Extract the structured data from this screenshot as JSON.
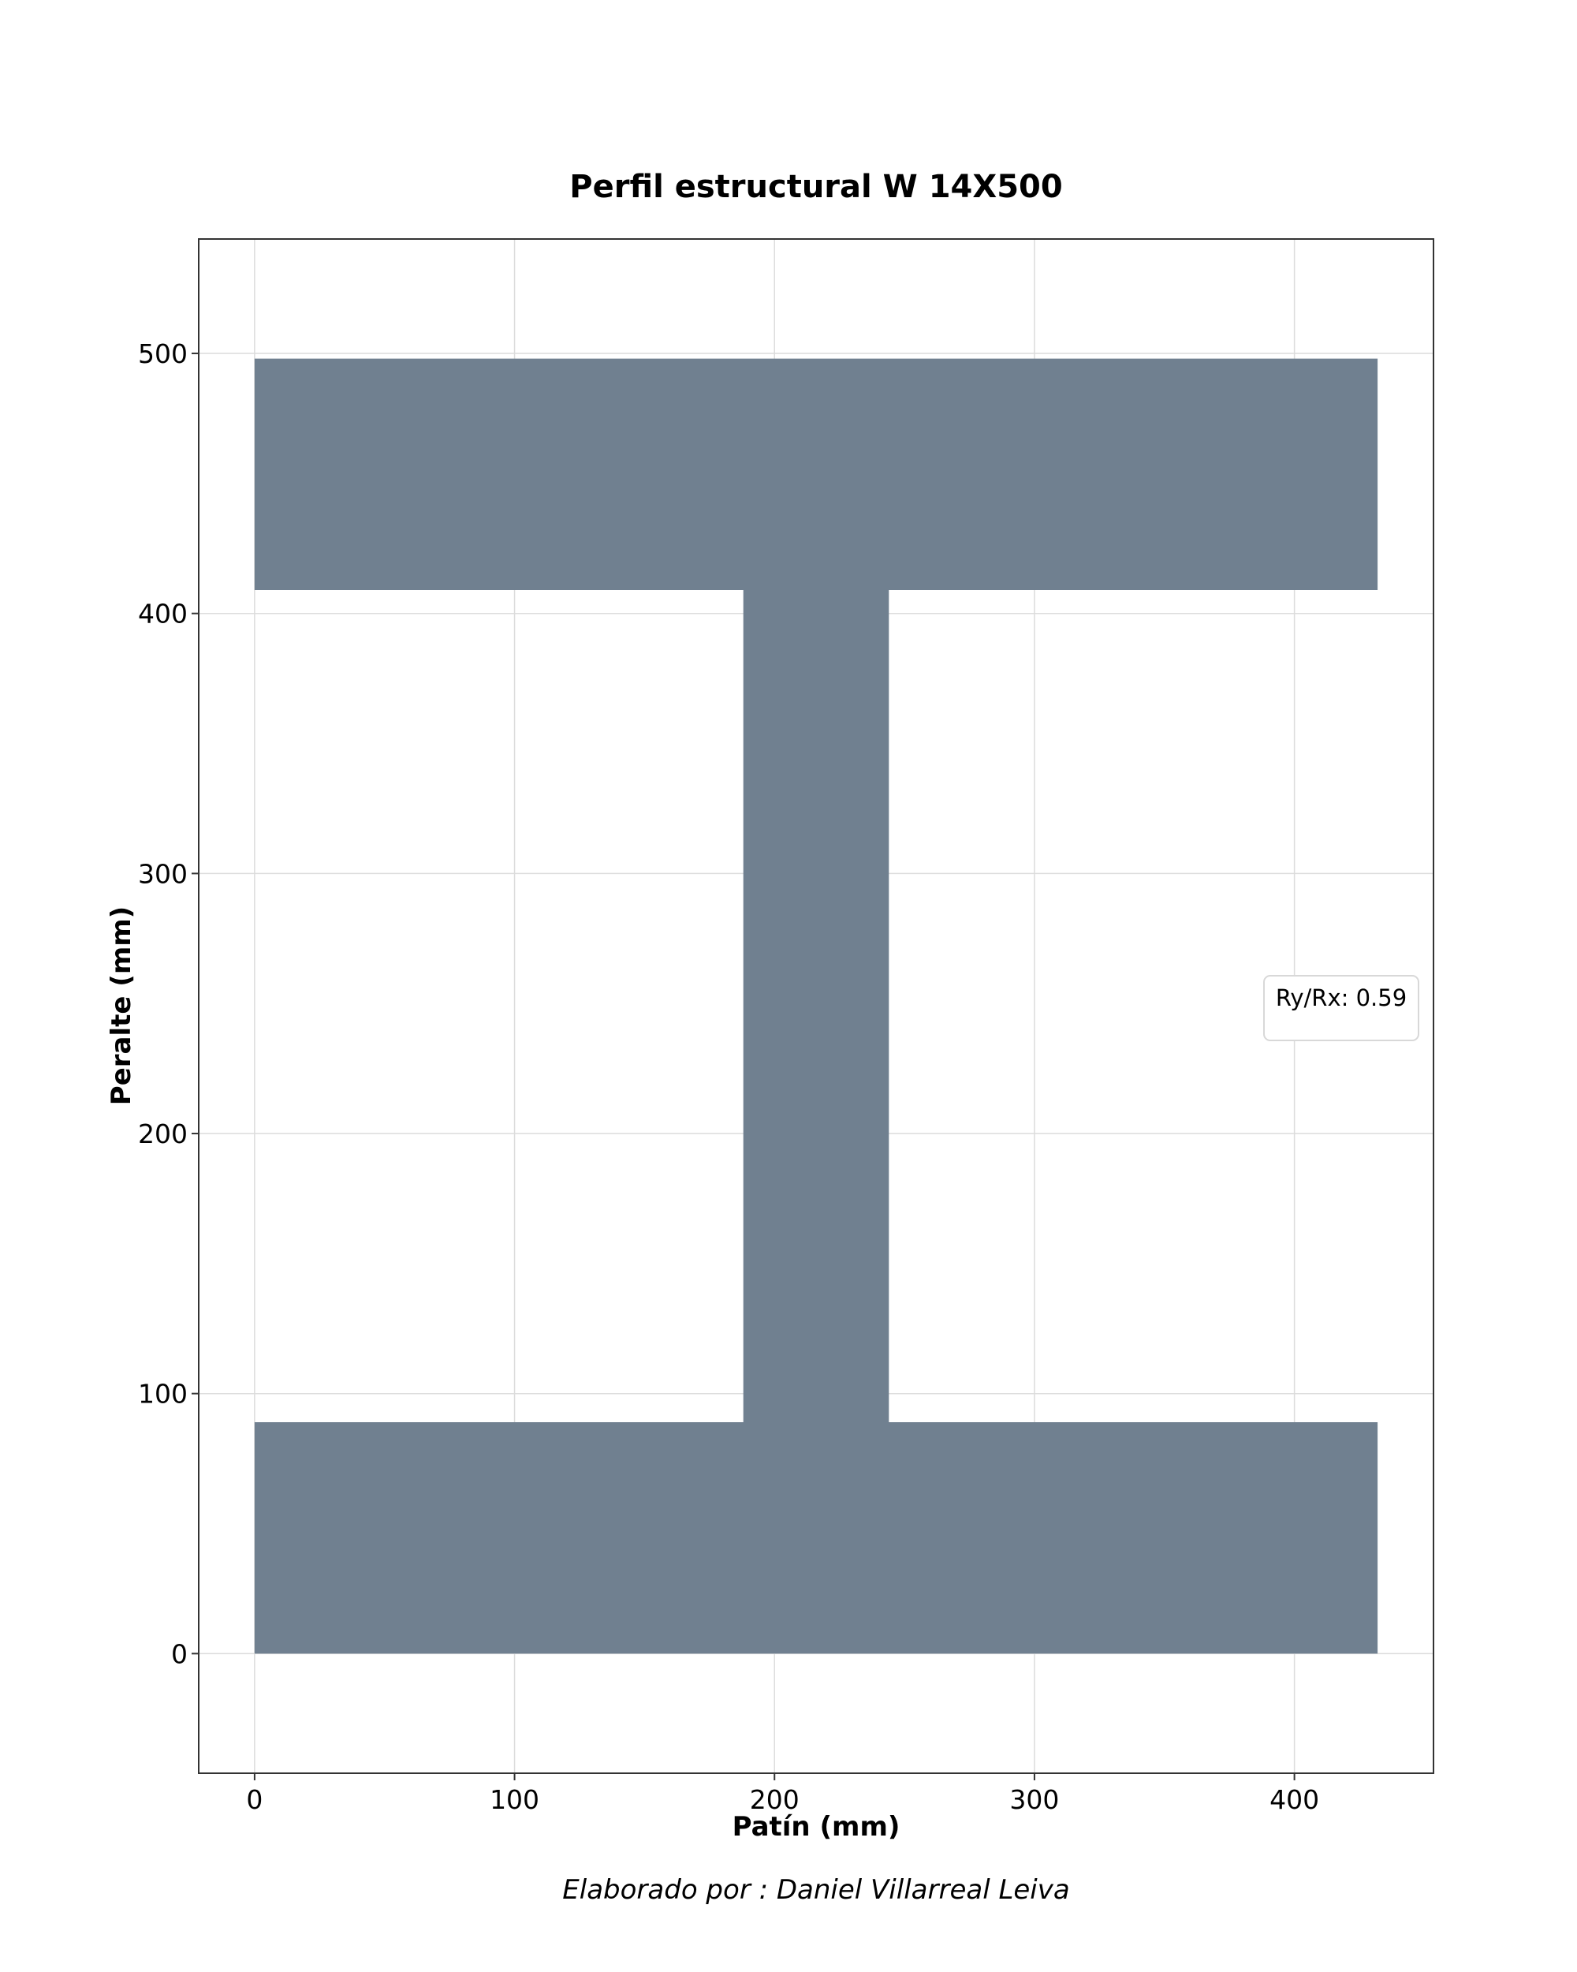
{
  "chart_data": {
    "type": "area",
    "title": "Perfil estructural W 14X500",
    "xlabel": "Patín (mm)",
    "ylabel": "Peralte (mm)",
    "xlim": [
      -21.5,
      453.5
    ],
    "ylim": [
      -46,
      544
    ],
    "xticks": [
      0,
      100,
      200,
      300,
      400
    ],
    "yticks": [
      0,
      100,
      200,
      300,
      400,
      500
    ],
    "grid": true,
    "fill_color": "#708090",
    "shape": {
      "name": "",
      "polygon": {
        "x": [
          0,
          432,
          432,
          244,
          244,
          432,
          432,
          0,
          0,
          188,
          188,
          0,
          0
        ],
        "y": [
          0,
          0,
          89,
          89,
          409,
          409,
          498,
          498,
          409,
          409,
          89,
          89,
          0
        ]
      }
    },
    "legend": {
      "text": "Ry/Rx: 0.59",
      "placement": "center-right"
    },
    "footer": "Elaborado por :  Daniel Villarreal Leiva"
  }
}
